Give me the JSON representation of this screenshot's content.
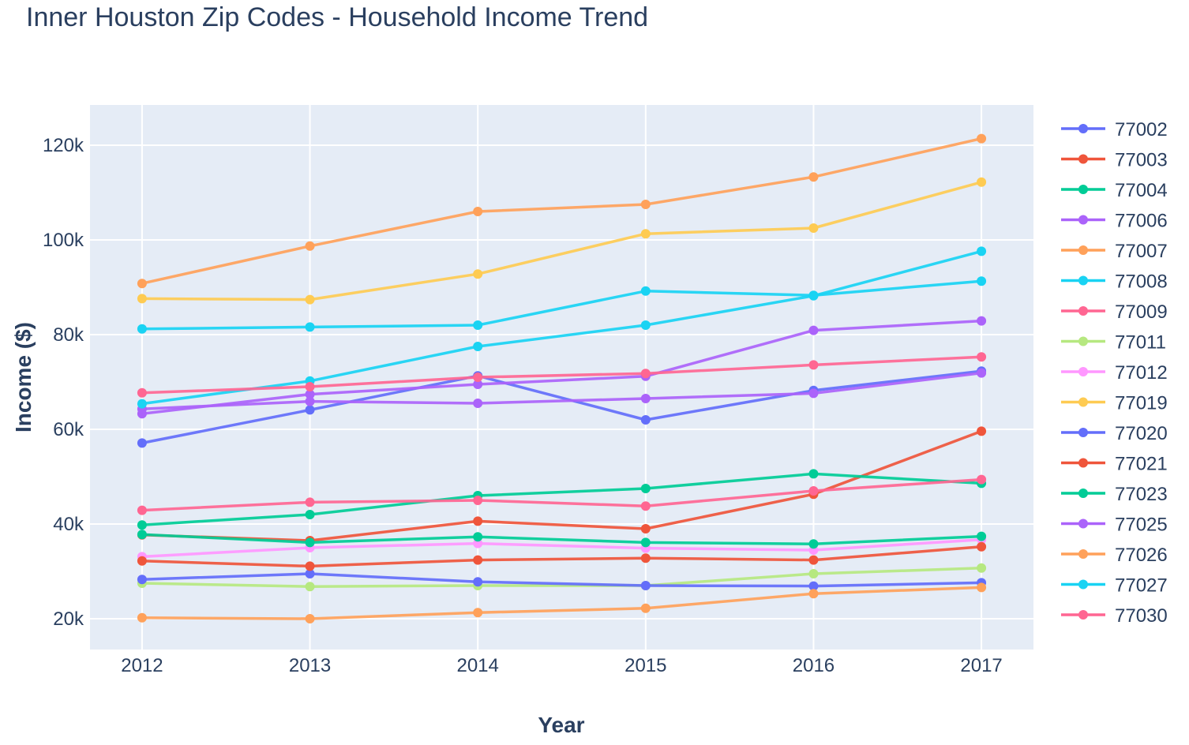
{
  "chart_data": {
    "type": "line",
    "title": "Inner Houston Zip Codes - Household Income Trend",
    "xlabel": "Year",
    "ylabel": "Income ($)",
    "x": [
      2012,
      2013,
      2014,
      2015,
      2016,
      2017
    ],
    "x_tick_labels": [
      "2012",
      "2013",
      "2014",
      "2015",
      "2016",
      "2017"
    ],
    "y_ticks": [
      20000,
      40000,
      60000,
      80000,
      100000,
      120000
    ],
    "y_tick_labels": [
      "20k",
      "40k",
      "60k",
      "80k",
      "100k",
      "120k"
    ],
    "ylim": [
      13500,
      128500
    ],
    "xlim": [
      2011.69,
      2017.31
    ],
    "grid": true,
    "legend_position": "right",
    "series": [
      {
        "name": "77002",
        "color": "#636efa",
        "values": [
          57100,
          64100,
          71300,
          62000,
          68200,
          72300
        ]
      },
      {
        "name": "77003",
        "color": "#ef553b",
        "values": [
          37700,
          36500,
          40600,
          39000,
          46300,
          59600
        ]
      },
      {
        "name": "77004",
        "color": "#00cc96",
        "values": [
          39800,
          42000,
          46000,
          47500,
          50600,
          48600
        ]
      },
      {
        "name": "77006",
        "color": "#ab63fa",
        "values": [
          63300,
          67400,
          69500,
          71200,
          80900,
          82900
        ]
      },
      {
        "name": "77007",
        "color": "#ffa15a",
        "values": [
          90800,
          98700,
          106000,
          107500,
          113300,
          121400
        ]
      },
      {
        "name": "77008",
        "color": "#19d3f3",
        "values": [
          81200,
          81600,
          82000,
          89200,
          88300,
          91300
        ]
      },
      {
        "name": "77009",
        "color": "#ff6692",
        "values": [
          42900,
          44600,
          45000,
          43800,
          47000,
          49400
        ]
      },
      {
        "name": "77011",
        "color": "#b6e880",
        "values": [
          27500,
          26800,
          27000,
          27000,
          29500,
          30700
        ]
      },
      {
        "name": "77012",
        "color": "#ff97ff",
        "values": [
          33100,
          35000,
          35900,
          34900,
          34500,
          36700
        ]
      },
      {
        "name": "77019",
        "color": "#fecb52",
        "values": [
          87600,
          87400,
          92800,
          101300,
          102500,
          112200
        ]
      },
      {
        "name": "77020",
        "color": "#636efa",
        "values": [
          28300,
          29500,
          27800,
          27000,
          26900,
          27600
        ]
      },
      {
        "name": "77021",
        "color": "#ef553b",
        "values": [
          32200,
          31100,
          32400,
          32800,
          32400,
          35200
        ]
      },
      {
        "name": "77023",
        "color": "#00cc96",
        "values": [
          37800,
          36100,
          37300,
          36100,
          35800,
          37400
        ]
      },
      {
        "name": "77025",
        "color": "#ab63fa",
        "values": [
          64300,
          65900,
          65500,
          66500,
          67600,
          71900
        ]
      },
      {
        "name": "77026",
        "color": "#ffa15a",
        "values": [
          20200,
          20000,
          21300,
          22200,
          25300,
          26600
        ]
      },
      {
        "name": "77027",
        "color": "#19d3f3",
        "values": [
          65400,
          70200,
          77500,
          82000,
          88200,
          97600
        ]
      },
      {
        "name": "77030",
        "color": "#ff6692",
        "values": [
          67700,
          69000,
          71000,
          71800,
          73600,
          75300
        ]
      }
    ]
  }
}
